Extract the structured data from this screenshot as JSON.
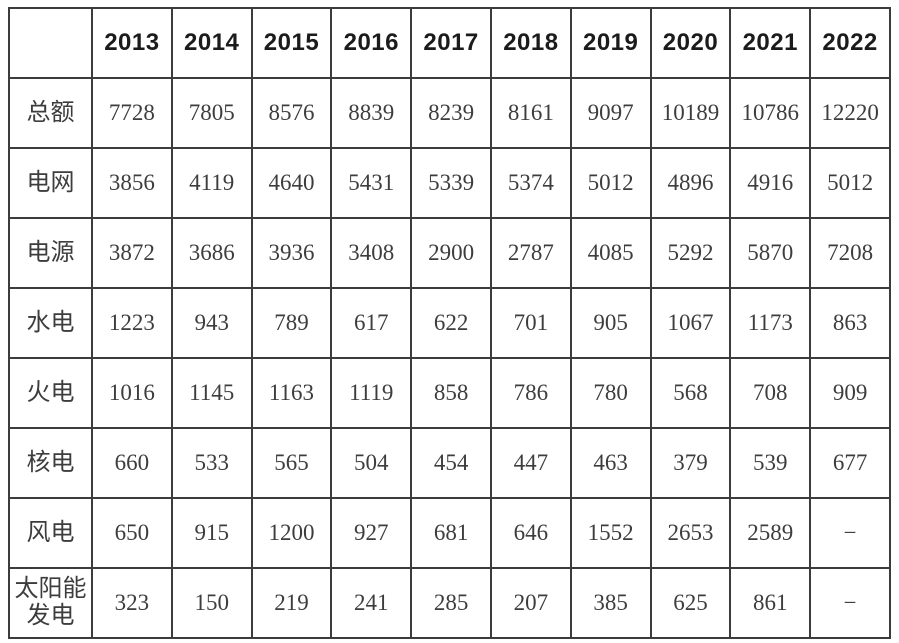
{
  "colors": {
    "background": "#ffffff",
    "border": "#3c3c3c",
    "header_text": "#1b1b1b",
    "body_text": "#3d3d3d"
  },
  "chart_data": {
    "type": "table",
    "title": "",
    "corner_label": "",
    "columns": [
      "2013",
      "2014",
      "2015",
      "2016",
      "2017",
      "2018",
      "2019",
      "2020",
      "2021",
      "2022"
    ],
    "rows": [
      {
        "label": "总额",
        "values": [
          7728,
          7805,
          8576,
          8839,
          8239,
          8161,
          9097,
          10189,
          10786,
          12220
        ]
      },
      {
        "label": "电网",
        "values": [
          3856,
          4119,
          4640,
          5431,
          5339,
          5374,
          5012,
          4896,
          4916,
          5012
        ]
      },
      {
        "label": "电源",
        "values": [
          3872,
          3686,
          3936,
          3408,
          2900,
          2787,
          4085,
          5292,
          5870,
          7208
        ]
      },
      {
        "label": "水电",
        "values": [
          1223,
          943,
          789,
          617,
          622,
          701,
          905,
          1067,
          1173,
          863
        ]
      },
      {
        "label": "火电",
        "values": [
          1016,
          1145,
          1163,
          1119,
          858,
          786,
          780,
          568,
          708,
          909
        ]
      },
      {
        "label": "核电",
        "values": [
          660,
          533,
          565,
          504,
          454,
          447,
          463,
          379,
          539,
          677
        ]
      },
      {
        "label": "风电",
        "values": [
          650,
          915,
          1200,
          927,
          681,
          646,
          1552,
          2653,
          2589,
          "−"
        ]
      },
      {
        "label": "太阳能发电",
        "values": [
          323,
          150,
          219,
          241,
          285,
          207,
          385,
          625,
          861,
          "−"
        ]
      }
    ],
    "layout_hints": {
      "grid": "full-borders",
      "header_row": "years across top",
      "label_column": "category names on left",
      "missing_value_marker": "−"
    }
  }
}
